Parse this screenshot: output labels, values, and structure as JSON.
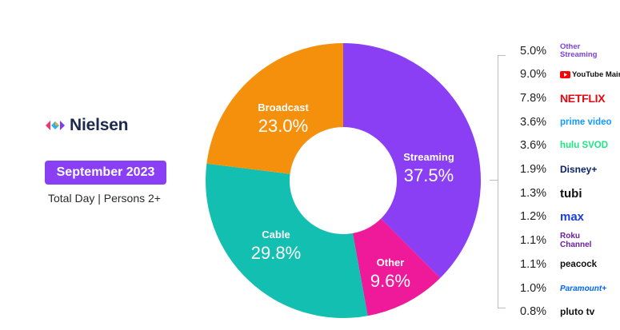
{
  "brand": {
    "name": "Nielsen"
  },
  "header": {
    "period": "September 2023",
    "subtitle": "Total Day | Persons 2+"
  },
  "chart_data": {
    "type": "pie",
    "categories": [
      "Streaming",
      "Other",
      "Cable",
      "Broadcast"
    ],
    "values": [
      37.5,
      9.6,
      29.8,
      23.0
    ],
    "labels": [
      "37.5%",
      "9.6%",
      "29.8%",
      "23.0%"
    ],
    "colors": [
      "#8a3ff5",
      "#ee1a9a",
      "#12bfb0",
      "#f5900d"
    ],
    "title": "",
    "streaming_breakdown": {
      "values": [
        5.0,
        9.0,
        7.8,
        3.6,
        3.6,
        1.9,
        1.3,
        1.2,
        1.1,
        1.1,
        1.0,
        0.8
      ],
      "labels": [
        "5.0%",
        "9.0%",
        "7.8%",
        "3.6%",
        "3.6%",
        "1.9%",
        "1.3%",
        "1.2%",
        "1.1%",
        "1.1%",
        "1.0%",
        "0.8%"
      ],
      "services": [
        "Other Streaming",
        "YouTube Main",
        "NETFLIX",
        "prime video",
        "hulu SVOD",
        "Disney+",
        "tubi",
        "max",
        "Roku Channel",
        "peacock",
        "Paramount+",
        "pluto tv"
      ]
    }
  },
  "icons": [
    "nielsen-logo-icon",
    "youtube-play-icon"
  ]
}
